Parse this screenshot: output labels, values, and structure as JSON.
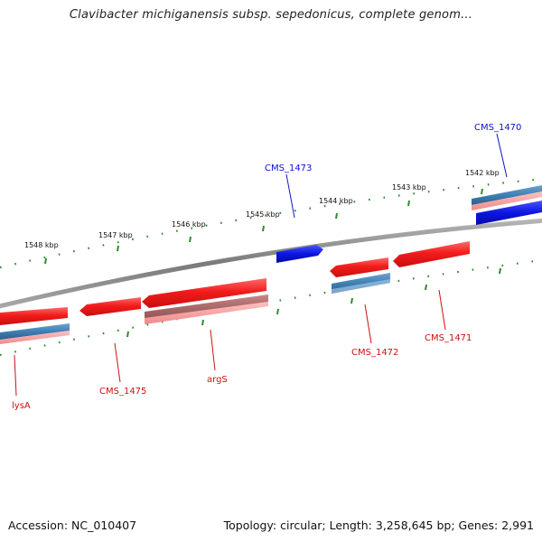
{
  "title": "Clavibacter michiganensis subsp. sepedonicus, complete genom...",
  "footer": {
    "accession": "Accession: NC_010407",
    "topology": "Topology: circular; Length: 3,258,645 bp; Genes: 2,991"
  },
  "colors": {
    "backbone": "#8a8a8a",
    "tick": "#2e8b2e",
    "forward_label": "#1111cc",
    "reverse_label": "#cc1111",
    "gene_red": "#ee1b1b",
    "gene_blue": "#0b16e0",
    "pseudo_blue": "#3f7fb4",
    "pseudo_pink": "#f29a9a"
  },
  "ruler_labels": [
    "1542 kbp",
    "1543 kbp",
    "1544 kbp",
    "1545 kbp",
    "1546 kbp",
    "1547 kbp",
    "1548 kbp"
  ],
  "genes": {
    "CMS_1470": "CMS_1470",
    "CMS_1471": "CMS_1471",
    "CMS_1472": "CMS_1472",
    "CMS_1473": "CMS_1473",
    "argS": "argS",
    "CMS_1475": "CMS_1475",
    "lysA": "lysA"
  }
}
